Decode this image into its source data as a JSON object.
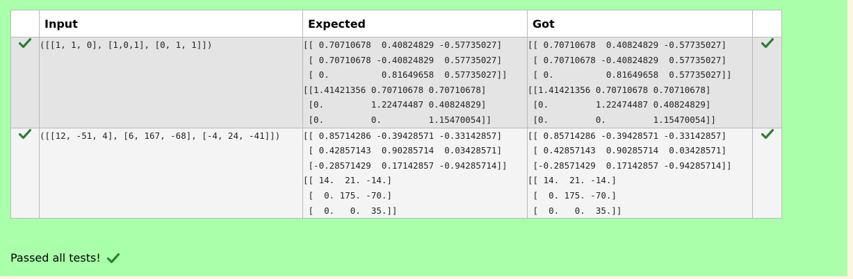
{
  "table": {
    "headers": [
      "",
      "Input",
      "Expected",
      "Got",
      ""
    ],
    "rows": [
      {
        "input": [
          "([[1, 1, 0], [1,0,1], [0, 1, 1]])"
        ],
        "expected": [
          "[[ 0.70710678  0.40824829 -0.57735027]",
          " [ 0.70710678 -0.40824829  0.57735027]",
          " [ 0.          0.81649658  0.57735027]]",
          "[[1.41421356 0.70710678 0.70710678]",
          " [0.         1.22474487 0.40824829]",
          " [0.         0.         1.15470054]]"
        ],
        "got": [
          "[[ 0.70710678  0.40824829 -0.57735027]",
          " [ 0.70710678 -0.40824829  0.57735027]",
          " [ 0.          0.81649658  0.57735027]]",
          "[[1.41421356 0.70710678 0.70710678]",
          " [0.         1.22474487 0.40824829]",
          " [0.         0.         1.15470054]]"
        ]
      },
      {
        "input": [
          "([[12, -51, 4], [6, 167, -68], [-4, 24, -41]])"
        ],
        "expected": [
          "[[ 0.85714286 -0.39428571 -0.33142857]",
          " [ 0.42857143  0.90285714  0.03428571]",
          " [-0.28571429  0.17142857 -0.94285714]]",
          "[[ 14.  21. -14.]",
          " [  0. 175. -70.]",
          " [  0.   0.  35.]]"
        ],
        "got": [
          "[[ 0.85714286 -0.39428571 -0.33142857]",
          " [ 0.42857143  0.90285714  0.03428571]",
          " [-0.28571429  0.17142857 -0.94285714]]",
          "[[ 14.  21. -14.]",
          " [  0. 175. -70.]",
          " [  0.   0.  35.]]"
        ]
      }
    ]
  },
  "status_text": "Passed all tests!",
  "icons": {
    "check": "check-icon"
  },
  "colors": {
    "pass_background": "#aaffaa",
    "check_green": "#2e7d32"
  }
}
